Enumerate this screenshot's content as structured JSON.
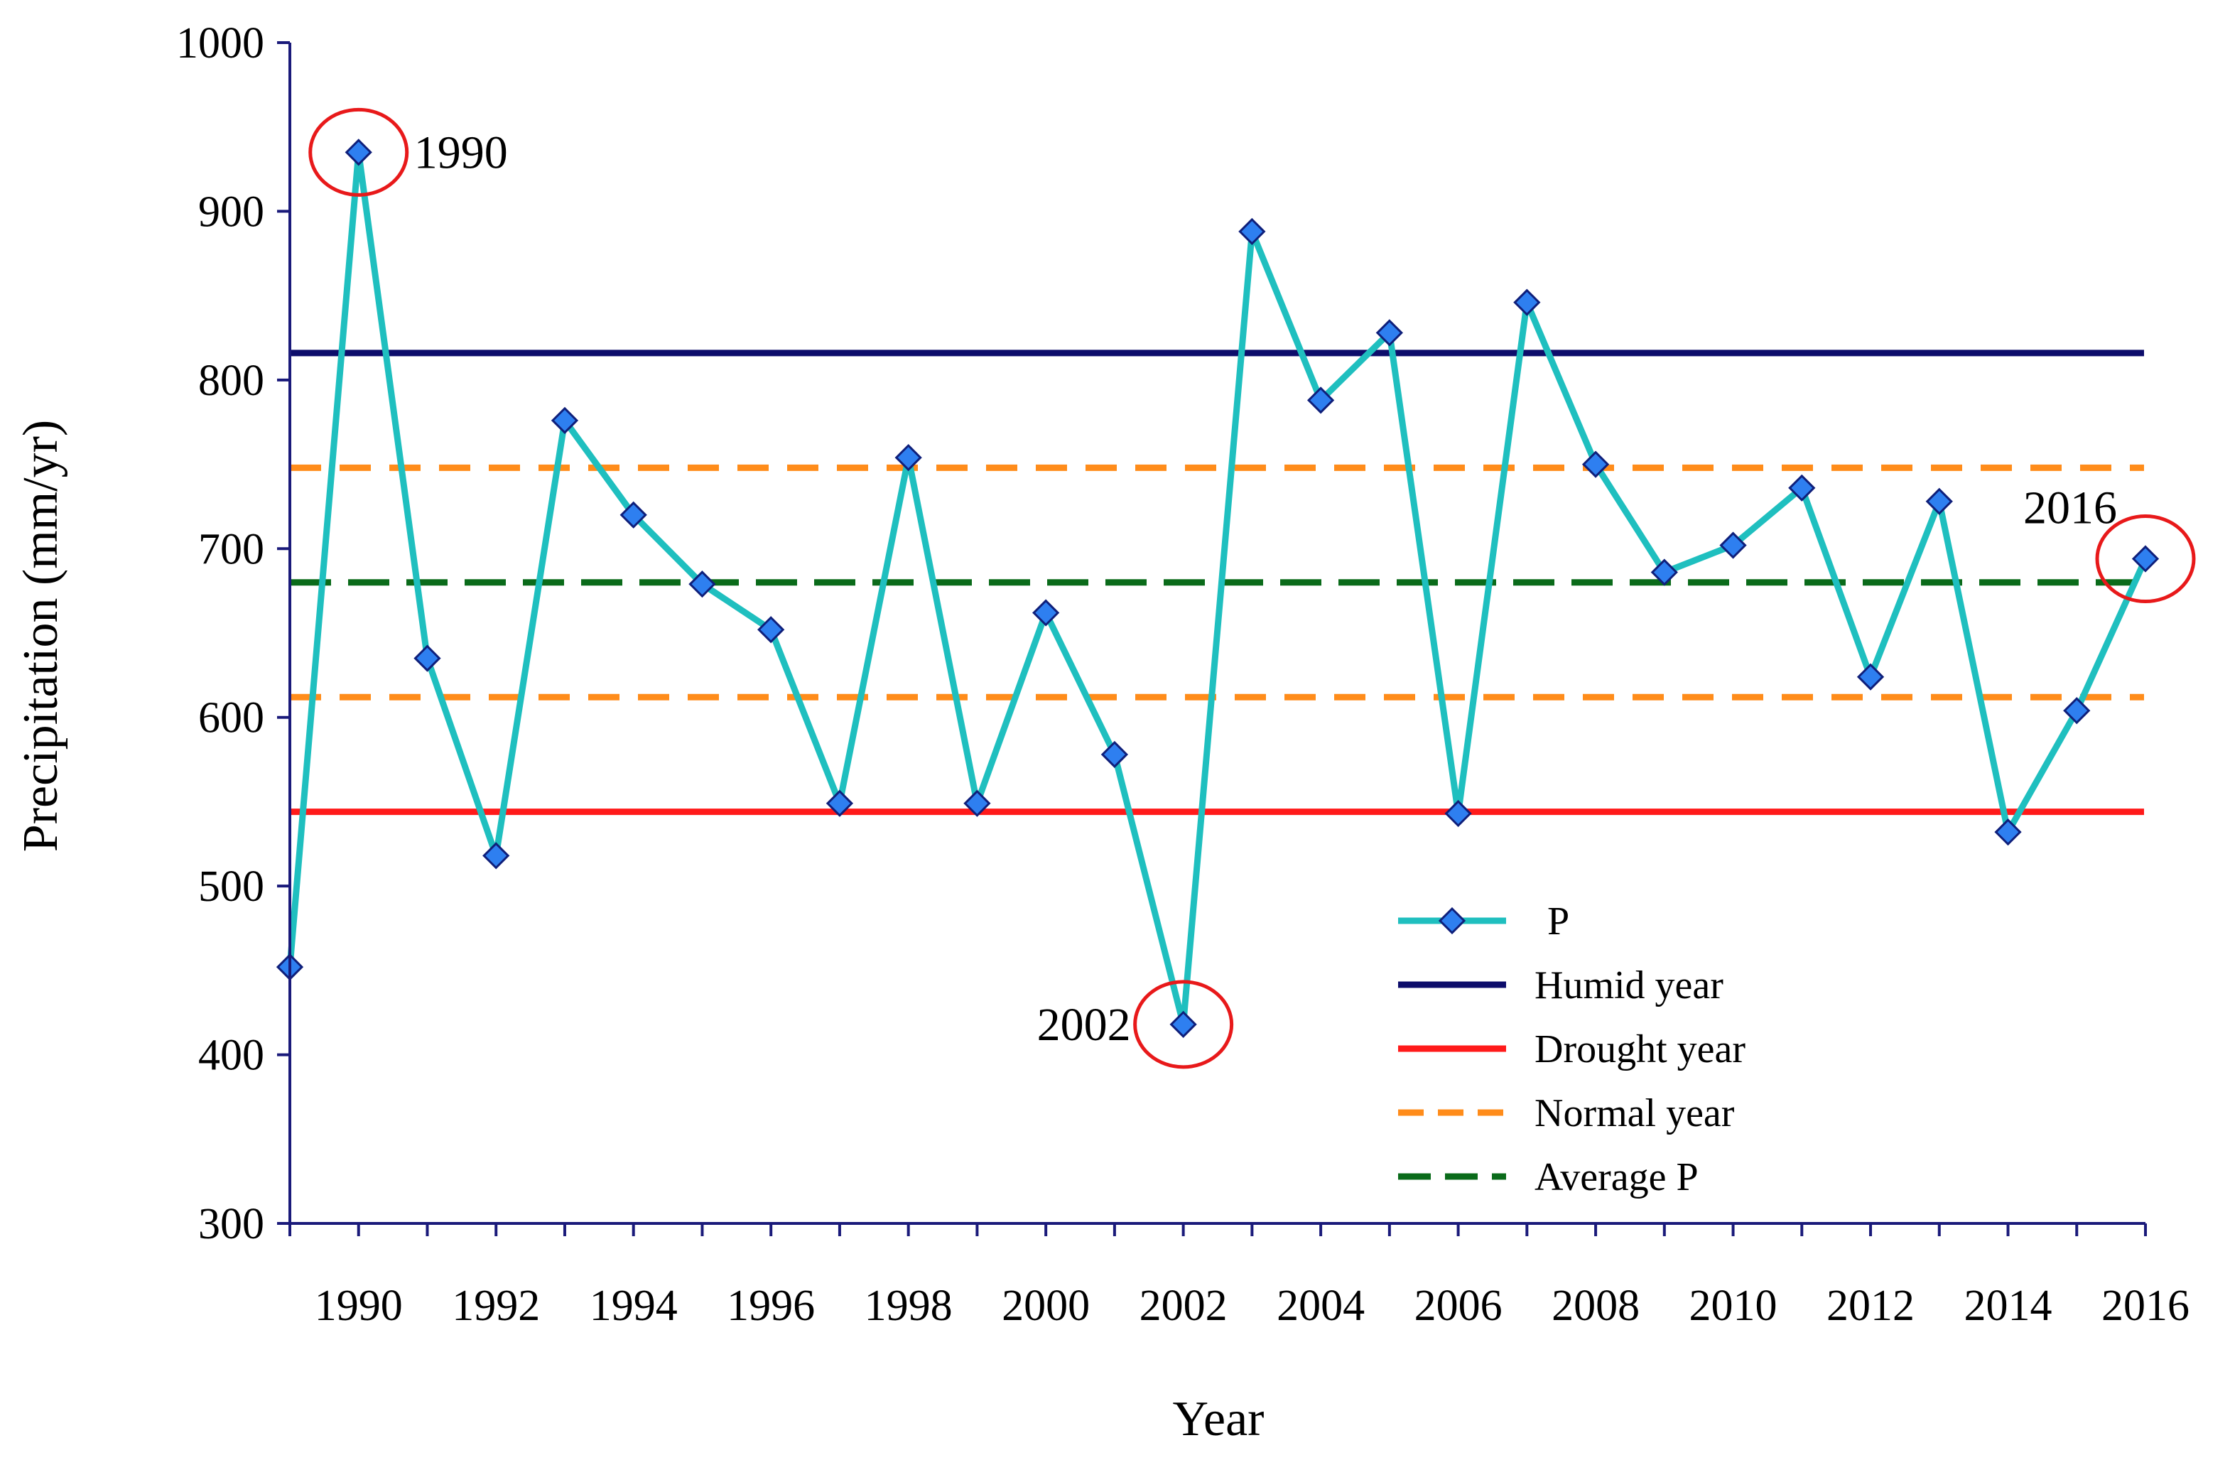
{
  "chart_data": {
    "type": "line",
    "title": "",
    "xlabel": "Year",
    "ylabel": "Precipitation (mm/yr)",
    "xlim": [
      1989,
      2016
    ],
    "ylim": [
      300,
      1000
    ],
    "yticks": [
      300,
      400,
      500,
      600,
      700,
      800,
      900,
      1000
    ],
    "xticks": [
      1990,
      1992,
      1994,
      1996,
      1998,
      2000,
      2002,
      2004,
      2006,
      2008,
      2010,
      2012,
      2014,
      2016
    ],
    "grid": false,
    "legend_position": "lower-right",
    "series": [
      {
        "name": "P",
        "color": "#1fbfbf",
        "marker_color": "#2e7ff0",
        "marker": "diamond",
        "x": [
          1989,
          1990,
          1991,
          1992,
          1993,
          1994,
          1995,
          1996,
          1997,
          1998,
          1999,
          2000,
          2001,
          2002,
          2003,
          2004,
          2005,
          2006,
          2007,
          2008,
          2009,
          2010,
          2011,
          2012,
          2013,
          2014,
          2015,
          2016
        ],
        "values": [
          452,
          935,
          635,
          518,
          776,
          720,
          679,
          652,
          549,
          754,
          549,
          662,
          578,
          418,
          888,
          788,
          828,
          543,
          846,
          750,
          686,
          702,
          736,
          624,
          728,
          532,
          604,
          694
        ]
      }
    ],
    "reference_lines": [
      {
        "name": "Humid year",
        "value": 816,
        "color": "#0d0d6b",
        "style": "solid"
      },
      {
        "name": "Drought year",
        "value": 544,
        "color": "#ff1a1a",
        "style": "solid"
      },
      {
        "name": "Normal year",
        "value": 748,
        "color": "#ff8c1a",
        "style": "dashed"
      },
      {
        "name": "Normal year",
        "value": 612,
        "color": "#ff8c1a",
        "style": "dashed"
      },
      {
        "name": "Average P",
        "value": 680,
        "color": "#0a6b1a",
        "style": "dashdot"
      }
    ],
    "legend": [
      {
        "label": "P",
        "kind": "series",
        "color": "#1fbfbf",
        "marker_color": "#2e7ff0"
      },
      {
        "label": "Humid year",
        "kind": "solid",
        "color": "#0d0d6b"
      },
      {
        "label": "Drought year",
        "kind": "solid",
        "color": "#ff1a1a"
      },
      {
        "label": "Normal year",
        "kind": "dashed",
        "color": "#ff8c1a"
      },
      {
        "label": "Average P",
        "kind": "dashdot",
        "color": "#0a6b1a"
      }
    ],
    "annotations": [
      {
        "label": "1990",
        "x": 1990,
        "y": 935,
        "text_side": "right",
        "circle_color": "#e8191a"
      },
      {
        "label": "2002",
        "x": 2002,
        "y": 418,
        "text_side": "left",
        "circle_color": "#e8191a"
      },
      {
        "label": "2016",
        "x": 2016,
        "y": 694,
        "text_side": "above-left",
        "circle_color": "#e8191a"
      }
    ],
    "axis_color": "#1a1a7a"
  }
}
